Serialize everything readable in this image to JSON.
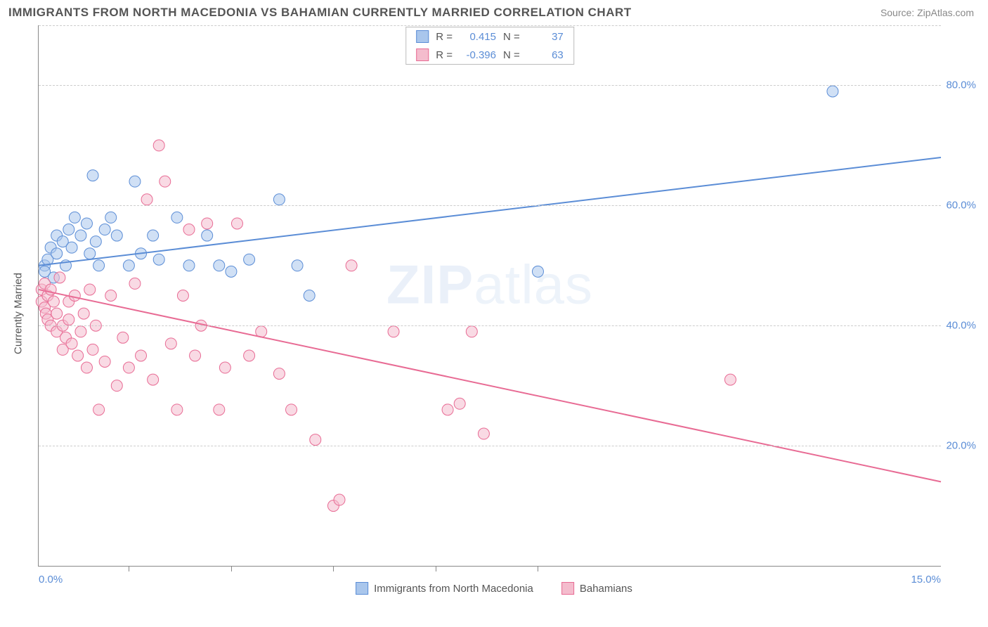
{
  "title": "IMMIGRANTS FROM NORTH MACEDONIA VS BAHAMIAN CURRENTLY MARRIED CORRELATION CHART",
  "source_label": "Source:",
  "source_name": "ZipAtlas.com",
  "y_axis_title": "Currently Married",
  "watermark_a": "ZIP",
  "watermark_b": "atlas",
  "chart": {
    "type": "scatter",
    "xlim": [
      0,
      15
    ],
    "ylim": [
      0,
      90
    ],
    "x_ticks": [
      0,
      15
    ],
    "x_tick_labels": [
      "0.0%",
      "15.0%"
    ],
    "x_minor_ticks": [
      1.5,
      3.2,
      4.9,
      6.6,
      8.3
    ],
    "y_ticks": [
      20,
      40,
      60,
      80
    ],
    "y_tick_labels": [
      "20.0%",
      "40.0%",
      "60.0%",
      "80.0%"
    ],
    "grid_color": "#cccccc",
    "axis_color": "#888888",
    "background_color": "#ffffff",
    "marker_radius": 8,
    "marker_opacity": 0.55,
    "line_width": 2,
    "series": [
      {
        "name": "Immigrants from North Macedonia",
        "color_fill": "#a9c6ec",
        "color_stroke": "#5b8dd6",
        "r": "0.415",
        "n": "37",
        "trend": {
          "x1": 0,
          "y1": 50,
          "x2": 15,
          "y2": 68
        },
        "points": [
          [
            0.1,
            50
          ],
          [
            0.1,
            49
          ],
          [
            0.15,
            51
          ],
          [
            0.2,
            53
          ],
          [
            0.25,
            48
          ],
          [
            0.3,
            55
          ],
          [
            0.3,
            52
          ],
          [
            0.4,
            54
          ],
          [
            0.45,
            50
          ],
          [
            0.5,
            56
          ],
          [
            0.55,
            53
          ],
          [
            0.6,
            58
          ],
          [
            0.7,
            55
          ],
          [
            0.8,
            57
          ],
          [
            0.85,
            52
          ],
          [
            0.9,
            65
          ],
          [
            0.95,
            54
          ],
          [
            1.0,
            50
          ],
          [
            1.1,
            56
          ],
          [
            1.2,
            58
          ],
          [
            1.3,
            55
          ],
          [
            1.5,
            50
          ],
          [
            1.6,
            64
          ],
          [
            1.7,
            52
          ],
          [
            1.9,
            55
          ],
          [
            2.0,
            51
          ],
          [
            2.3,
            58
          ],
          [
            2.5,
            50
          ],
          [
            2.8,
            55
          ],
          [
            3.0,
            50
          ],
          [
            3.2,
            49
          ],
          [
            3.5,
            51
          ],
          [
            4.0,
            61
          ],
          [
            4.3,
            50
          ],
          [
            4.5,
            45
          ],
          [
            8.3,
            49
          ],
          [
            13.2,
            79
          ]
        ]
      },
      {
        "name": "Bahamians",
        "color_fill": "#f4bccd",
        "color_stroke": "#e86b94",
        "r": "-0.396",
        "n": "63",
        "trend": {
          "x1": 0,
          "y1": 46,
          "x2": 15,
          "y2": 14
        },
        "points": [
          [
            0.05,
            46
          ],
          [
            0.05,
            44
          ],
          [
            0.1,
            47
          ],
          [
            0.1,
            43
          ],
          [
            0.12,
            42
          ],
          [
            0.15,
            45
          ],
          [
            0.15,
            41
          ],
          [
            0.2,
            40
          ],
          [
            0.2,
            46
          ],
          [
            0.25,
            44
          ],
          [
            0.3,
            42
          ],
          [
            0.3,
            39
          ],
          [
            0.35,
            48
          ],
          [
            0.4,
            40
          ],
          [
            0.4,
            36
          ],
          [
            0.45,
            38
          ],
          [
            0.5,
            41
          ],
          [
            0.5,
            44
          ],
          [
            0.55,
            37
          ],
          [
            0.6,
            45
          ],
          [
            0.65,
            35
          ],
          [
            0.7,
            39
          ],
          [
            0.75,
            42
          ],
          [
            0.8,
            33
          ],
          [
            0.85,
            46
          ],
          [
            0.9,
            36
          ],
          [
            0.95,
            40
          ],
          [
            1.0,
            26
          ],
          [
            1.1,
            34
          ],
          [
            1.2,
            45
          ],
          [
            1.3,
            30
          ],
          [
            1.4,
            38
          ],
          [
            1.5,
            33
          ],
          [
            1.6,
            47
          ],
          [
            1.7,
            35
          ],
          [
            1.8,
            61
          ],
          [
            1.9,
            31
          ],
          [
            2.0,
            70
          ],
          [
            2.1,
            64
          ],
          [
            2.2,
            37
          ],
          [
            2.3,
            26
          ],
          [
            2.4,
            45
          ],
          [
            2.5,
            56
          ],
          [
            2.6,
            35
          ],
          [
            2.7,
            40
          ],
          [
            2.8,
            57
          ],
          [
            3.0,
            26
          ],
          [
            3.1,
            33
          ],
          [
            3.3,
            57
          ],
          [
            3.5,
            35
          ],
          [
            3.7,
            39
          ],
          [
            4.0,
            32
          ],
          [
            4.2,
            26
          ],
          [
            4.6,
            21
          ],
          [
            4.9,
            10
          ],
          [
            5.0,
            11
          ],
          [
            5.2,
            50
          ],
          [
            5.9,
            39
          ],
          [
            6.8,
            26
          ],
          [
            7.2,
            39
          ],
          [
            7.4,
            22
          ],
          [
            11.5,
            31
          ],
          [
            7.0,
            27
          ]
        ]
      }
    ]
  },
  "legend_bottom": [
    {
      "label": "Immigrants from North Macedonia",
      "fill": "#a9c6ec",
      "stroke": "#5b8dd6"
    },
    {
      "label": "Bahamians",
      "fill": "#f4bccd",
      "stroke": "#e86b94"
    }
  ]
}
